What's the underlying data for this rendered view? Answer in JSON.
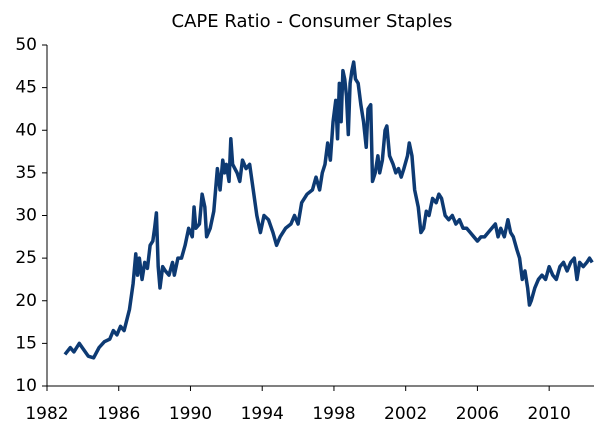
{
  "chart_data": {
    "type": "line",
    "title": "CAPE Ratio - Consumer Staples",
    "x": [
      1983.0,
      1983.3,
      1983.5,
      1983.8,
      1984.0,
      1984.3,
      1984.6,
      1984.9,
      1985.2,
      1985.5,
      1985.7,
      1985.9,
      1986.1,
      1986.3,
      1986.6,
      1986.8,
      1986.95,
      1987.05,
      1987.15,
      1987.3,
      1987.45,
      1987.6,
      1987.75,
      1987.9,
      1988.0,
      1988.1,
      1988.2,
      1988.3,
      1988.45,
      1988.6,
      1988.8,
      1989.0,
      1989.1,
      1989.3,
      1989.5,
      1989.7,
      1989.9,
      1990.1,
      1990.2,
      1990.3,
      1990.5,
      1990.65,
      1990.8,
      1990.9,
      1991.1,
      1991.3,
      1991.5,
      1991.65,
      1991.8,
      1991.9,
      1992.0,
      1992.15,
      1992.25,
      1992.35,
      1992.6,
      1992.75,
      1992.9,
      1993.1,
      1993.3,
      1993.5,
      1993.7,
      1993.9,
      1994.1,
      1994.35,
      1994.6,
      1994.8,
      1995.0,
      1995.3,
      1995.6,
      1995.8,
      1996.0,
      1996.2,
      1996.5,
      1996.8,
      1997.0,
      1997.2,
      1997.35,
      1997.5,
      1997.65,
      1997.8,
      1997.95,
      1998.1,
      1998.2,
      1998.3,
      1998.4,
      1998.5,
      1998.6,
      1998.7,
      1998.8,
      1998.9,
      1999.0,
      1999.1,
      1999.2,
      1999.35,
      1999.5,
      1999.65,
      1999.8,
      1999.9,
      2000.05,
      2000.15,
      2000.3,
      2000.45,
      2000.55,
      2000.7,
      2000.85,
      2000.95,
      2001.1,
      2001.3,
      2001.45,
      2001.6,
      2001.75,
      2001.9,
      2002.1,
      2002.2,
      2002.35,
      2002.5,
      2002.7,
      2002.85,
      2003.0,
      2003.15,
      2003.3,
      2003.5,
      2003.7,
      2003.85,
      2004.0,
      2004.2,
      2004.4,
      2004.6,
      2004.8,
      2005.0,
      2005.2,
      2005.4,
      2005.6,
      2005.8,
      2006.0,
      2006.2,
      2006.4,
      2006.6,
      2006.8,
      2007.0,
      2007.15,
      2007.3,
      2007.5,
      2007.7,
      2007.85,
      2008.0,
      2008.2,
      2008.35,
      2008.5,
      2008.65,
      2008.8,
      2008.9,
      2009.0,
      2009.2,
      2009.4,
      2009.6,
      2009.8,
      2010.0,
      2010.2,
      2010.4,
      2010.6,
      2010.8,
      2011.0,
      2011.2,
      2011.4,
      2011.55,
      2011.7,
      2011.9,
      2012.1,
      2012.25,
      2012.4
    ],
    "series": [
      {
        "color": "#0d3a73",
        "values": [
          13.7,
          14.5,
          14.0,
          15.0,
          14.4,
          13.5,
          13.3,
          14.5,
          15.2,
          15.5,
          16.5,
          16.0,
          17.0,
          16.5,
          19.0,
          22.0,
          25.5,
          23.0,
          25.0,
          22.5,
          24.5,
          23.8,
          26.5,
          27.0,
          28.5,
          30.3,
          24.0,
          21.5,
          24.0,
          23.5,
          23.0,
          24.5,
          23.0,
          25.0,
          25.0,
          26.5,
          28.5,
          27.5,
          31.0,
          28.5,
          29.0,
          32.5,
          31.0,
          27.5,
          28.5,
          30.5,
          35.5,
          33.0,
          36.5,
          35.0,
          36.0,
          34.0,
          39.0,
          36.0,
          35.0,
          34.0,
          36.5,
          35.5,
          36.0,
          33.0,
          30.0,
          28.0,
          30.0,
          29.5,
          28.0,
          26.5,
          27.5,
          28.5,
          29.0,
          30.0,
          29.0,
          31.5,
          32.5,
          33.0,
          34.5,
          33.0,
          35.0,
          36.0,
          38.5,
          36.5,
          41.0,
          43.5,
          39.0,
          45.5,
          41.0,
          47.0,
          46.0,
          44.0,
          39.5,
          45.5,
          47.0,
          48.0,
          46.0,
          45.5,
          43.0,
          41.0,
          38.0,
          42.5,
          43.0,
          34.0,
          35.0,
          37.0,
          35.0,
          36.5,
          40.0,
          40.5,
          37.0,
          36.0,
          35.0,
          35.5,
          34.5,
          35.5,
          37.0,
          38.5,
          37.0,
          33.0,
          31.0,
          28.0,
          28.5,
          30.5,
          30.0,
          32.0,
          31.5,
          32.5,
          32.0,
          30.0,
          29.5,
          30.0,
          29.0,
          29.5,
          28.5,
          28.5,
          28.0,
          27.5,
          27.0,
          27.5,
          27.5,
          28.0,
          28.5,
          29.0,
          27.5,
          28.5,
          27.5,
          29.5,
          28.0,
          27.5,
          26.0,
          25.0,
          22.5,
          23.5,
          21.5,
          19.5,
          20.0,
          21.5,
          22.5,
          23.0,
          22.5,
          24.0,
          23.0,
          22.5,
          24.0,
          24.5,
          23.5,
          24.5,
          25.0,
          22.5,
          24.5,
          24.0,
          24.5,
          25.0,
          24.5
        ]
      }
    ],
    "xlim": [
      1982,
      2012.5
    ],
    "xticks": [
      1982,
      1986,
      1990,
      1994,
      1998,
      2002,
      2006,
      2010
    ],
    "ylim": [
      10,
      50
    ],
    "yticks": [
      10,
      15,
      20,
      25,
      30,
      35,
      40,
      45,
      50
    ]
  }
}
